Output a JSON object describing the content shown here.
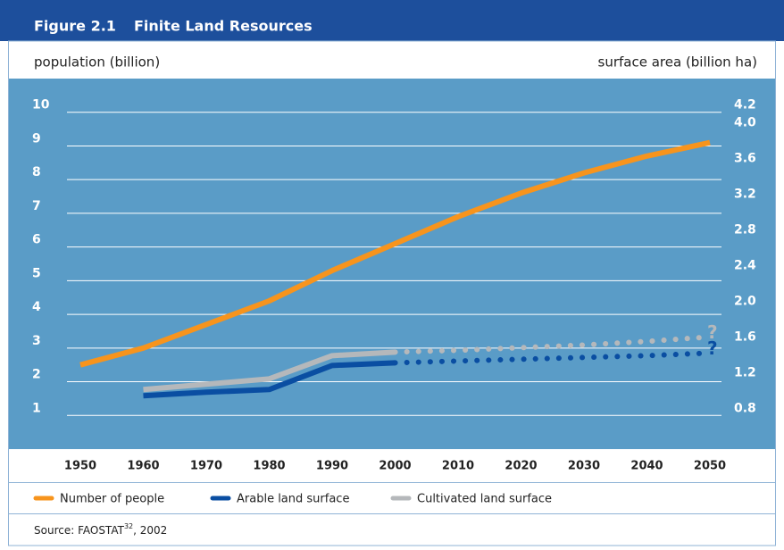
{
  "chart_data": {
    "type": "line",
    "figure_label": "Figure 2.1",
    "title": "Finite Land Resources",
    "y_label": "population (billion)",
    "y2_label": "surface area (billion ha)",
    "x": [
      1950,
      1960,
      1970,
      1980,
      1990,
      2000,
      2010,
      2020,
      2030,
      2040,
      2050
    ],
    "xlim": [
      1950,
      2050
    ],
    "xticks": [
      1950,
      1960,
      1970,
      1980,
      1990,
      2000,
      2010,
      2020,
      2030,
      2040,
      2050
    ],
    "ylim": [
      0,
      11
    ],
    "yticks": [
      1,
      2,
      3,
      4,
      5,
      6,
      7,
      8,
      9,
      10
    ],
    "y2lim": [
      0.422,
      4.578
    ],
    "y2ticks": [
      0.8,
      1.2,
      1.6,
      {
        "value": 2,
        "label": "2.0"
      },
      2.4,
      2.8,
      3.2,
      3.6,
      {
        "value": 4,
        "label": "4.0"
      },
      4.2
    ],
    "grid": true,
    "series": [
      {
        "name": "Number of people",
        "color": "#f7941d",
        "values": [
          2.5,
          3.0,
          3.7,
          4.4,
          5.3,
          6.1,
          6.9,
          7.6,
          8.2,
          8.7,
          9.1
        ]
      },
      {
        "name": "Arable land surface",
        "color": "#0a4ea2",
        "axis": "y2",
        "values": [
          null,
          1.02,
          1.06,
          1.09,
          1.36,
          1.39,
          null,
          null,
          null,
          null,
          null
        ],
        "projection": [
          null,
          null,
          null,
          null,
          null,
          null,
          1.41,
          1.43,
          1.45,
          1.47,
          1.5
        ],
        "end_label": "?"
      },
      {
        "name": "Cultivated land surface",
        "color": "#b5b8bb",
        "axis": "y2",
        "values": [
          null,
          1.09,
          1.15,
          1.21,
          1.47,
          1.51,
          null,
          null,
          null,
          null,
          null
        ],
        "projection": [
          null,
          null,
          null,
          null,
          null,
          null,
          1.53,
          1.56,
          1.59,
          1.63,
          1.68
        ],
        "end_label": "?"
      }
    ],
    "source": "Source: FAOSTAT",
    "source_ref": "32",
    "source_year": ", 2002"
  }
}
